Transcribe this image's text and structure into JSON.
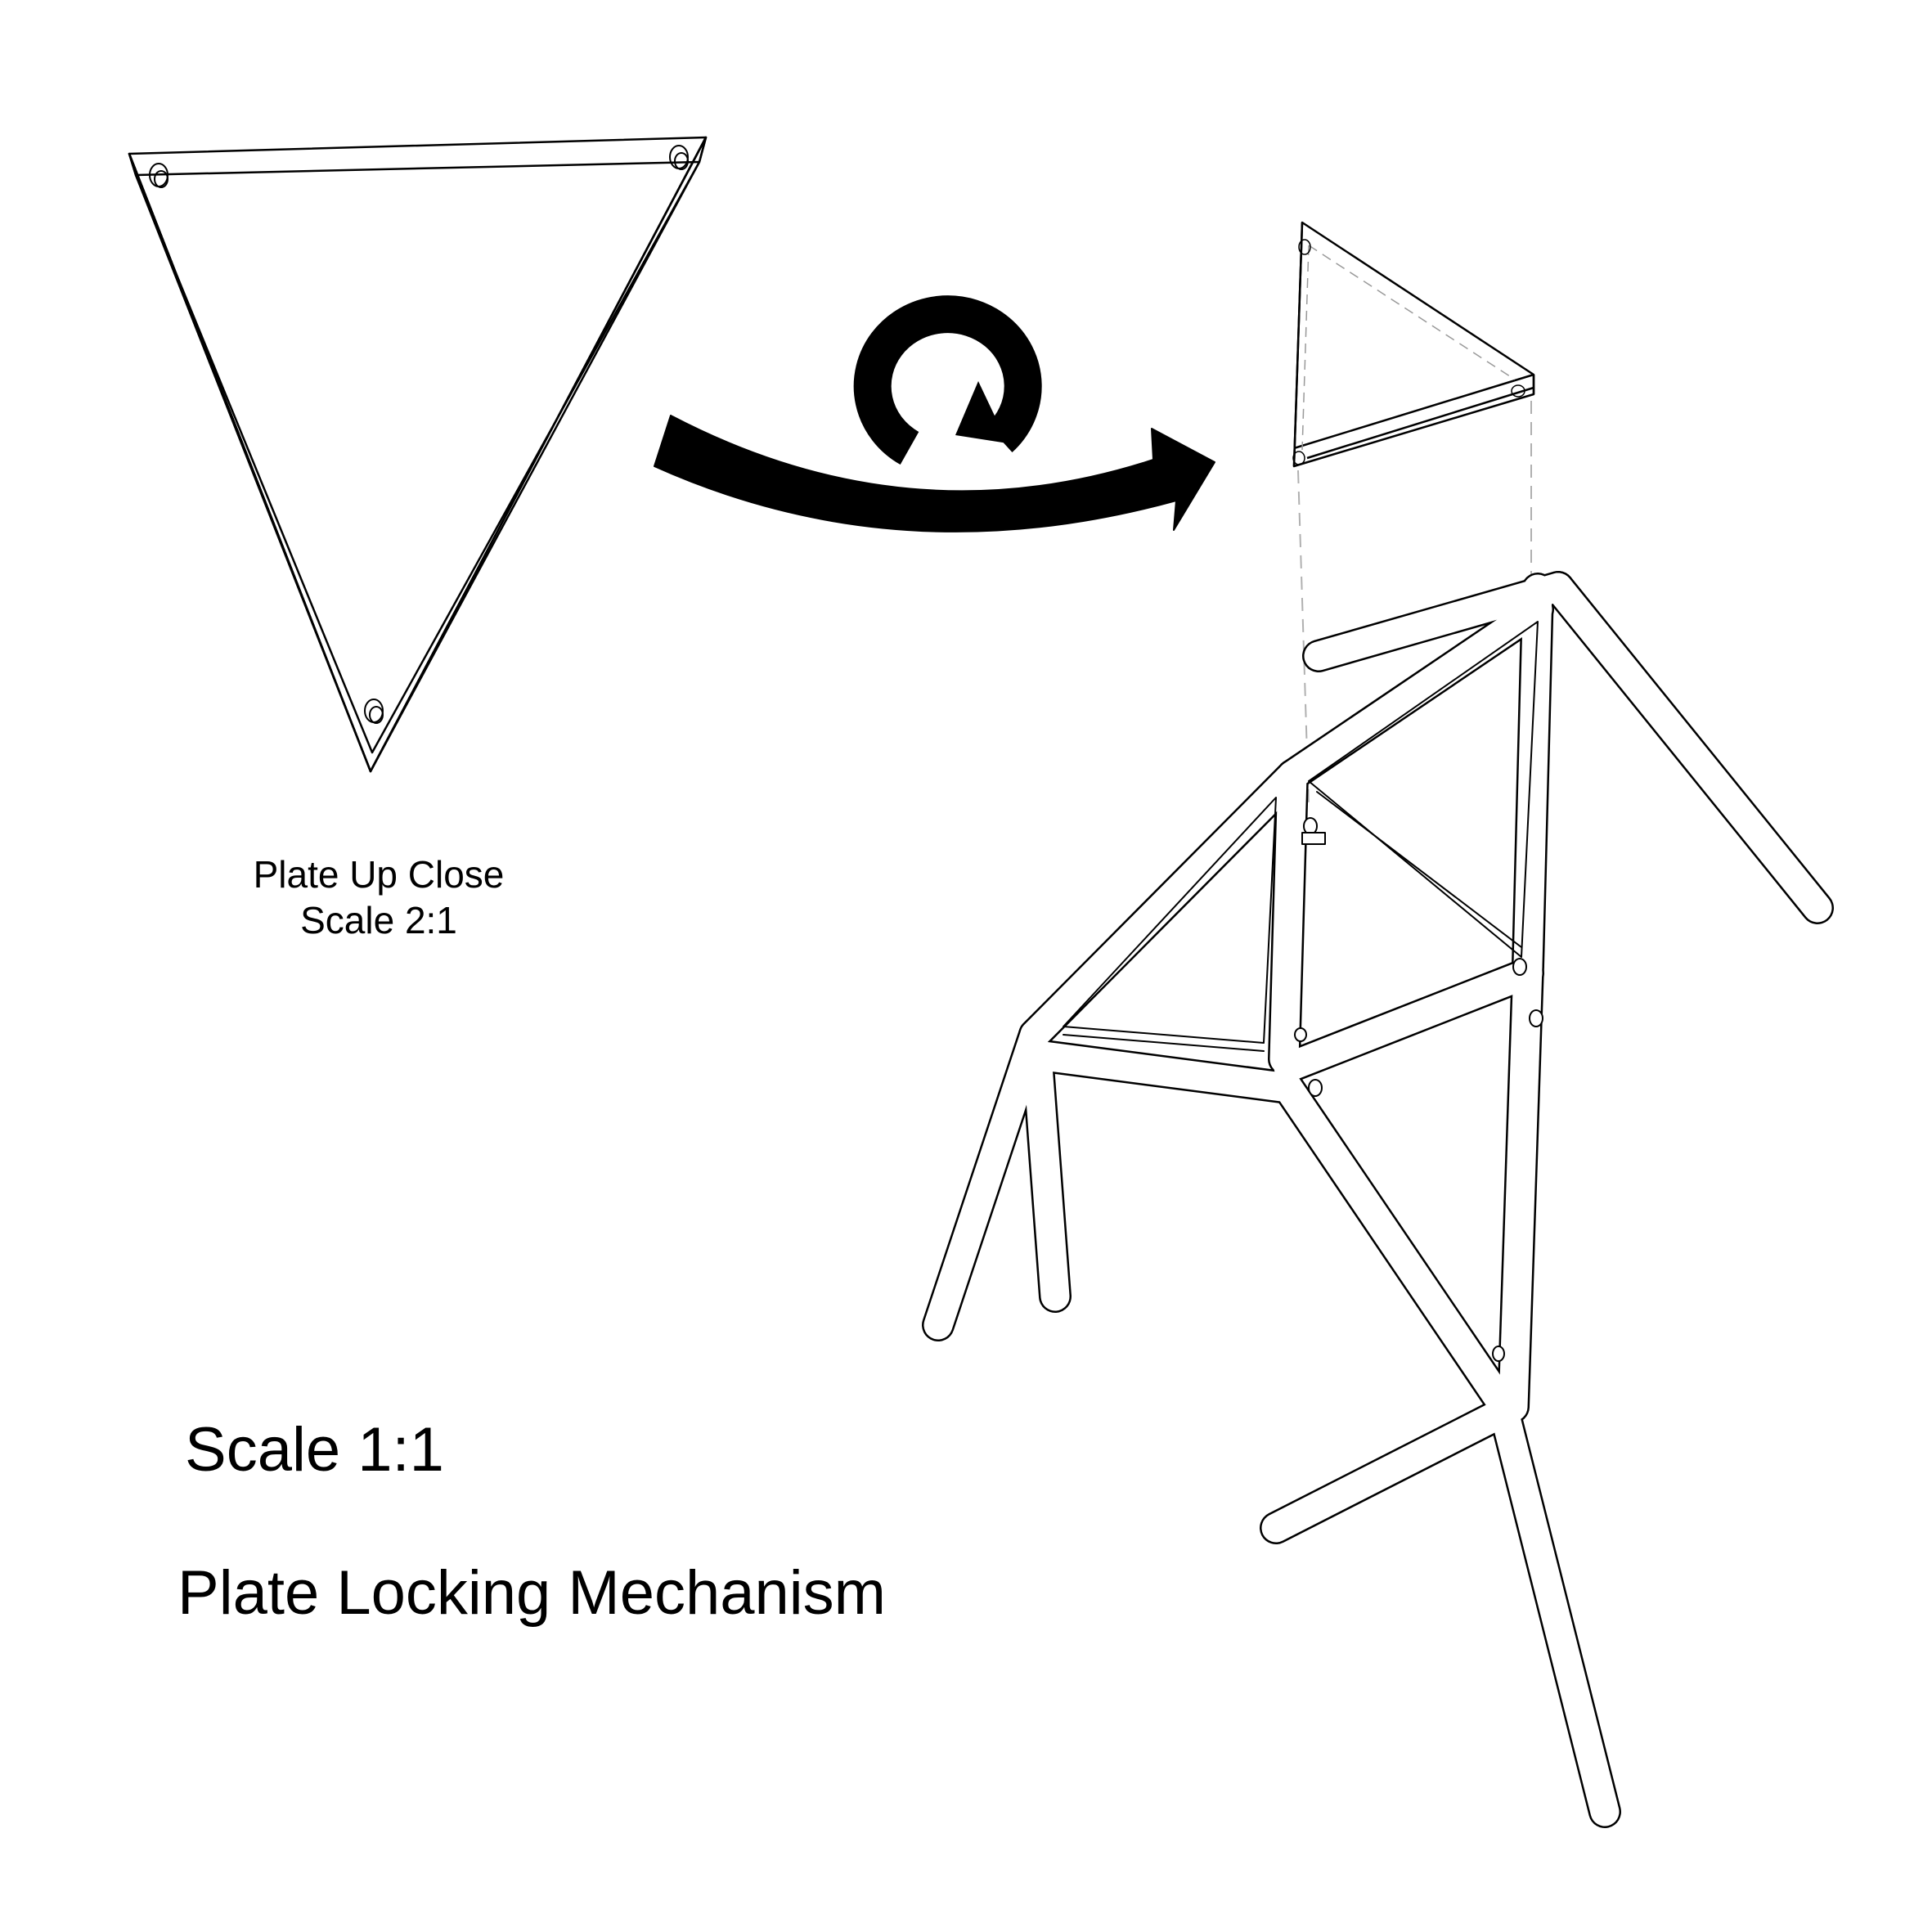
{
  "labels": {
    "plate_closeup_line1": "Plate Up Close",
    "plate_closeup_line2": "Scale 2:1",
    "scale_main": "Scale 1:1",
    "title": "Plate Locking Mechanism"
  },
  "icons": {
    "curved_arrow": "curved-arrow-right-icon",
    "rotate": "rotate-clockwise-icon"
  },
  "colors": {
    "ink": "#000000",
    "paper": "#ffffff",
    "guide": "#b0b0b0"
  }
}
